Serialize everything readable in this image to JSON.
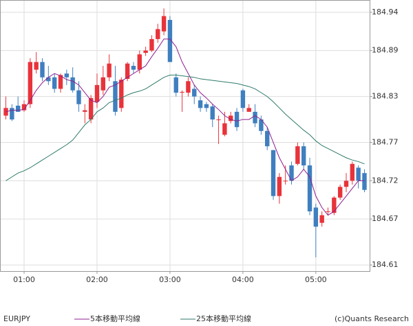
{
  "chart_data": {
    "type": "candlestick",
    "symbol": "EURJPY",
    "copyright": "(c)Quants Research",
    "categories": [
      null,
      null,
      null,
      "01:00",
      null,
      null,
      null,
      null,
      null,
      null,
      null,
      null,
      null,
      null,
      null,
      "02:00",
      null,
      null,
      null,
      null,
      null,
      null,
      null,
      null,
      null,
      null,
      null,
      "03:00",
      null,
      null,
      null,
      null,
      null,
      null,
      null,
      null,
      null,
      null,
      null,
      "04:00",
      null,
      null,
      null,
      null,
      null,
      null,
      null,
      null,
      null,
      null,
      null,
      "05:00",
      null,
      null,
      null,
      null,
      null,
      null,
      null,
      null
    ],
    "open": [
      184.805,
      184.815,
      184.818,
      184.812,
      184.82,
      184.865,
      184.875,
      184.855,
      184.855,
      184.84,
      184.86,
      184.855,
      184.838,
      184.81,
      184.8,
      184.823,
      184.838,
      184.855,
      184.85,
      184.815,
      184.853,
      184.87,
      184.865,
      184.887,
      184.89,
      184.905,
      184.915,
      184.93,
      184.855,
      184.835,
      184.835,
      184.84,
      184.825,
      184.82,
      184.817,
      184.8,
      184.78,
      184.798,
      184.81,
      184.838,
      184.81,
      184.81,
      184.8,
      184.785,
      184.76,
      184.7,
      184.72,
      184.74,
      184.742,
      184.765,
      184.74,
      184.685,
      184.665,
      184.68,
      184.678,
      184.698,
      184.712,
      184.72,
      184.737,
      184.73
    ],
    "high": [
      184.83,
      184.82,
      184.83,
      184.825,
      184.88,
      184.888,
      184.88,
      184.87,
      184.86,
      184.86,
      184.865,
      184.868,
      184.85,
      184.82,
      184.832,
      184.86,
      184.87,
      184.885,
      184.87,
      184.855,
      184.875,
      184.875,
      184.89,
      184.895,
      184.91,
      184.925,
      184.945,
      184.935,
      184.86,
      184.838,
      184.855,
      184.845,
      184.83,
      184.823,
      184.82,
      184.805,
      184.81,
      184.81,
      184.815,
      184.84,
      184.82,
      184.82,
      184.805,
      184.79,
      184.76,
      184.73,
      184.74,
      184.745,
      184.77,
      184.77,
      184.75,
      184.69,
      184.68,
      184.685,
      184.7,
      184.715,
      184.73,
      184.745,
      184.74,
      184.735
    ],
    "low": [
      184.8,
      184.798,
      184.81,
      184.81,
      184.815,
      184.86,
      184.85,
      184.845,
      184.835,
      184.835,
      184.845,
      184.835,
      184.81,
      184.795,
      184.795,
      184.815,
      184.832,
      184.85,
      184.805,
      184.81,
      184.85,
      184.86,
      184.86,
      184.883,
      184.888,
      184.9,
      184.91,
      184.875,
      184.83,
      184.81,
      184.83,
      184.82,
      184.81,
      184.81,
      184.79,
      184.768,
      184.778,
      184.795,
      184.785,
      184.81,
      184.81,
      184.79,
      184.78,
      184.76,
      184.695,
      184.69,
      184.715,
      184.715,
      184.74,
      184.735,
      184.675,
      184.62,
      184.66,
      184.675,
      184.675,
      184.695,
      184.705,
      184.715,
      184.71,
      184.705
    ],
    "close": [
      184.815,
      184.8,
      184.81,
      184.82,
      184.875,
      184.875,
      184.855,
      184.85,
      184.84,
      184.858,
      184.855,
      184.838,
      184.82,
      184.812,
      184.828,
      184.845,
      184.855,
      184.873,
      184.81,
      184.852,
      184.873,
      184.865,
      184.885,
      184.89,
      184.905,
      184.918,
      184.935,
      184.875,
      184.835,
      184.836,
      184.85,
      184.83,
      184.815,
      184.815,
      184.8,
      184.8,
      184.795,
      184.805,
      184.79,
      184.815,
      184.815,
      184.795,
      184.785,
      184.765,
      184.7,
      184.725,
      184.72,
      184.72,
      184.765,
      184.74,
      184.68,
      184.66,
      184.675,
      184.68,
      184.698,
      184.712,
      184.72,
      184.742,
      184.72,
      184.708
    ],
    "up_color": "#e8333a",
    "down_color": "#3f7fbf",
    "series": [
      {
        "name": "5本移動平均線",
        "color": "#8e1f8e",
        "values": [
          184.81,
          184.812,
          184.812,
          184.813,
          184.825,
          184.838,
          184.848,
          184.855,
          184.86,
          184.857,
          184.852,
          184.85,
          184.845,
          184.835,
          184.825,
          184.822,
          184.83,
          184.842,
          184.845,
          184.85,
          184.855,
          184.86,
          184.865,
          184.87,
          184.882,
          184.893,
          184.905,
          184.905,
          184.895,
          184.875,
          184.86,
          184.845,
          184.835,
          184.828,
          184.82,
          184.813,
          184.805,
          184.8,
          184.798,
          184.8,
          184.8,
          184.805,
          184.8,
          184.79,
          184.77,
          184.75,
          184.735,
          184.72,
          184.725,
          184.735,
          184.725,
          184.7,
          184.685,
          184.675,
          184.68,
          184.69,
          184.7,
          184.71,
          184.72,
          184.72
        ]
      },
      {
        "name": "25本移動平均線",
        "color": "#2e7a6a",
        "values": [
          184.72,
          184.725,
          184.73,
          184.733,
          184.737,
          184.742,
          184.747,
          184.752,
          184.757,
          184.762,
          184.767,
          184.773,
          184.783,
          184.793,
          184.8,
          184.81,
          184.815,
          184.822,
          184.825,
          184.828,
          184.832,
          184.835,
          184.837,
          184.84,
          184.845,
          184.85,
          184.855,
          184.858,
          184.858,
          184.857,
          184.856,
          184.855,
          184.853,
          184.852,
          184.851,
          184.85,
          184.849,
          184.848,
          184.847,
          184.845,
          184.843,
          184.84,
          184.835,
          184.83,
          184.823,
          184.815,
          184.807,
          184.8,
          184.793,
          184.786,
          184.78,
          184.772,
          184.766,
          184.762,
          184.758,
          184.754,
          184.75,
          184.747,
          184.745,
          184.742
        ]
      }
    ],
    "ylim": [
      184.602,
      184.956
    ],
    "yticks": [
      {
        "value": 184.94,
        "label": "184.94"
      },
      {
        "value": 184.89,
        "label": "184.89"
      },
      {
        "value": 184.83,
        "label": "184.83"
      },
      {
        "value": 184.77,
        "label": "184.77"
      },
      {
        "value": 184.72,
        "label": "184.72"
      },
      {
        "value": 184.67,
        "label": "184.67"
      },
      {
        "value": 184.61,
        "label": "184.61"
      }
    ],
    "grid": true
  }
}
